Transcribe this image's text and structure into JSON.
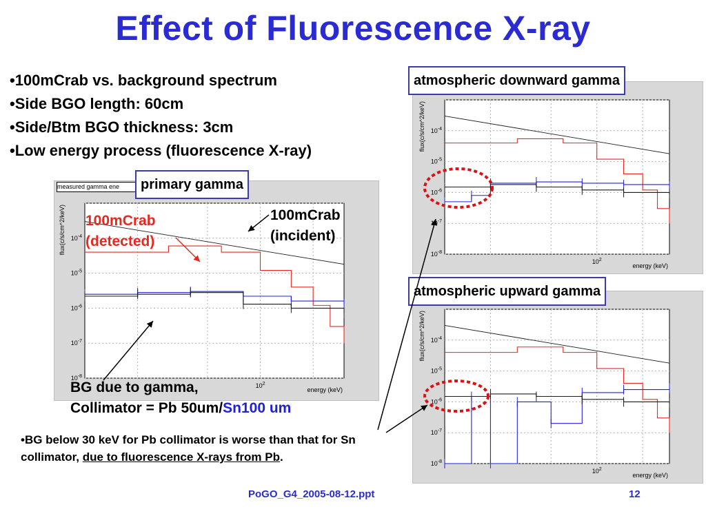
{
  "slide": {
    "title": "Effect of Fluorescence X-ray",
    "bullets": [
      "100mCrab vs. background spectrum",
      "Side BGO length: 60cm",
      "Side/Btm BGO thickness: 3cm",
      "Low energy process (fluorescence X-ray)"
    ],
    "footer": "PoGO_G4_2005-08-12.ppt",
    "page_number": "12",
    "note": {
      "prefix": "•BG below 30 keV for Pb collimator is worse than that for Sn collimator, ",
      "underlined": "due to fluorescence X-rays from Pb",
      "suffix": "."
    }
  },
  "annotations": {
    "primary_label": "primary gamma",
    "detected_line1": "100mCrab",
    "detected_line2": "(detected)",
    "incident_line1": "100mCrab",
    "incident_line2": "(incident)",
    "bg_line1": "BG due to gamma,",
    "bg_line2_black": "Collimator = Pb 50um/",
    "bg_line2_blue": "Sn100 um",
    "down_label": "atmospheric downward gamma",
    "up_label": "atmospheric upward gamma",
    "stat_box": "measured gamma ene"
  },
  "colors": {
    "title": "#2b2bd4",
    "red": "#e8281e",
    "blue": "#2020e0",
    "black": "#1a1a1a",
    "circle": "#dd1111"
  },
  "chart_data": [
    {
      "id": "primary",
      "type": "line",
      "xlabel": "energy (keV)",
      "ylabel": "flux(c/s/cm^2/keV)",
      "xscale": "log",
      "yscale": "log",
      "xlim": [
        10,
        300
      ],
      "ylim": [
        1e-08,
        0.001
      ],
      "x_tick_labels": [
        "10^2"
      ],
      "y_tick_labels": [
        "10^-8",
        "10^-7",
        "10^-6",
        "10^-5",
        "10^-4"
      ],
      "series": [
        {
          "color": "red",
          "x": [
            10,
            30,
            60,
            100,
            150,
            200,
            250,
            300
          ],
          "y": [
            4e-05,
            6e-05,
            4e-05,
            1.2e-05,
            4e-06,
            1.2e-06,
            3e-07,
            1e-07
          ]
        },
        {
          "color": "black",
          "x": [
            10,
            300
          ],
          "y": [
            0.0003,
            1.8e-05
          ]
        },
        {
          "color": "blue",
          "x": [
            10,
            20,
            40,
            80,
            150,
            300
          ],
          "y": [
            2.5e-06,
            2.8e-06,
            3e-06,
            2.2e-06,
            1.6e-06,
            1.3e-06
          ]
        },
        {
          "color": "black",
          "x": [
            10,
            20,
            40,
            80,
            150,
            300
          ],
          "y": [
            2.2e-06,
            2.5e-06,
            2.8e-06,
            1.3e-06,
            1e-06,
            7e-07
          ]
        }
      ]
    },
    {
      "id": "downward",
      "type": "line",
      "xlabel": "energy (keV)",
      "ylabel": "flux(c/s/cm^2/keV)",
      "xscale": "log",
      "yscale": "log",
      "xlim": [
        10,
        300
      ],
      "ylim": [
        1e-08,
        0.001
      ],
      "x_tick_labels": [
        "10^2"
      ],
      "y_tick_labels": [
        "10^-8",
        "10^-7",
        "10^-6",
        "10^-5",
        "10^-4"
      ],
      "series": [
        {
          "color": "red",
          "x": [
            10,
            30,
            60,
            100,
            150,
            200,
            250,
            300
          ],
          "y": [
            4e-05,
            5.5e-05,
            4e-05,
            1.2e-05,
            4e-06,
            1.2e-06,
            3e-07,
            1e-07
          ]
        },
        {
          "color": "black",
          "x": [
            10,
            300
          ],
          "y": [
            0.0003,
            1.8e-05
          ]
        },
        {
          "color": "blue",
          "x": [
            10,
            15,
            20,
            40,
            80,
            150,
            300
          ],
          "y": [
            5e-07,
            8e-07,
            2e-06,
            2.2e-06,
            2e-06,
            1.8e-06,
            1.6e-06
          ]
        },
        {
          "color": "black",
          "x": [
            10,
            20,
            40,
            80,
            150,
            300
          ],
          "y": [
            1.5e-06,
            1.8e-06,
            1.5e-06,
            1.2e-06,
            1e-06,
            9e-07
          ]
        }
      ]
    },
    {
      "id": "upward",
      "type": "line",
      "xlabel": "energy (keV)",
      "ylabel": "flux(c/s/cm^2/keV)",
      "xscale": "log",
      "yscale": "log",
      "xlim": [
        10,
        300
      ],
      "ylim": [
        1e-08,
        0.001
      ],
      "x_tick_labels": [
        "10^2"
      ],
      "y_tick_labels": [
        "10^-8",
        "10^-7",
        "10^-6",
        "10^-5",
        "10^-4"
      ],
      "series": [
        {
          "color": "red",
          "x": [
            10,
            30,
            60,
            100,
            150,
            200,
            250,
            300
          ],
          "y": [
            4e-05,
            6e-05,
            4e-05,
            1.2e-05,
            4e-06,
            1.2e-06,
            3e-07,
            1e-07
          ]
        },
        {
          "color": "black",
          "x": [
            10,
            300
          ],
          "y": [
            0.0003,
            1.8e-05
          ]
        },
        {
          "color": "blue",
          "x": [
            10,
            15,
            20,
            30,
            50,
            80,
            150,
            300
          ],
          "y": [
            1e-08,
            1.5e-06,
            1e-08,
            1e-06,
            2e-07,
            2e-06,
            2.5e-06,
            2.8e-06
          ]
        },
        {
          "color": "black",
          "x": [
            10,
            20,
            40,
            80,
            150,
            300
          ],
          "y": [
            1.5e-06,
            1.8e-06,
            1.5e-06,
            1.2e-06,
            1e-06,
            9e-07
          ]
        }
      ]
    }
  ]
}
